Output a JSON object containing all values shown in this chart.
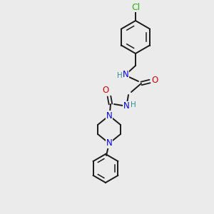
{
  "background_color": "#ebebeb",
  "bond_color": "#1a1a1a",
  "atom_colors": {
    "N": "#0000ee",
    "O": "#dd0000",
    "Cl": "#22bb00",
    "H": "#2a9090"
  },
  "figsize": [
    3.0,
    3.0
  ],
  "dpi": 100
}
